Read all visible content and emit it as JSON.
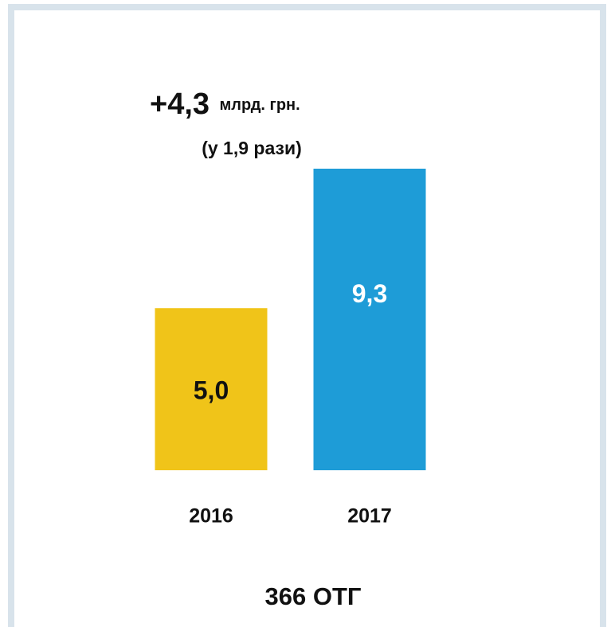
{
  "chart_data": {
    "type": "bar",
    "annotation": {
      "value_text": "+4,3",
      "unit": "млрд. грн.",
      "note": "(у 1,9 рази)"
    },
    "categories": [
      "2016",
      "2017"
    ],
    "values": [
      5.0,
      9.3
    ],
    "value_labels": [
      "5,0",
      "9,3"
    ],
    "colors": [
      "#f0c419",
      "#1e9cd7"
    ],
    "footer": "366 ОТГ"
  }
}
